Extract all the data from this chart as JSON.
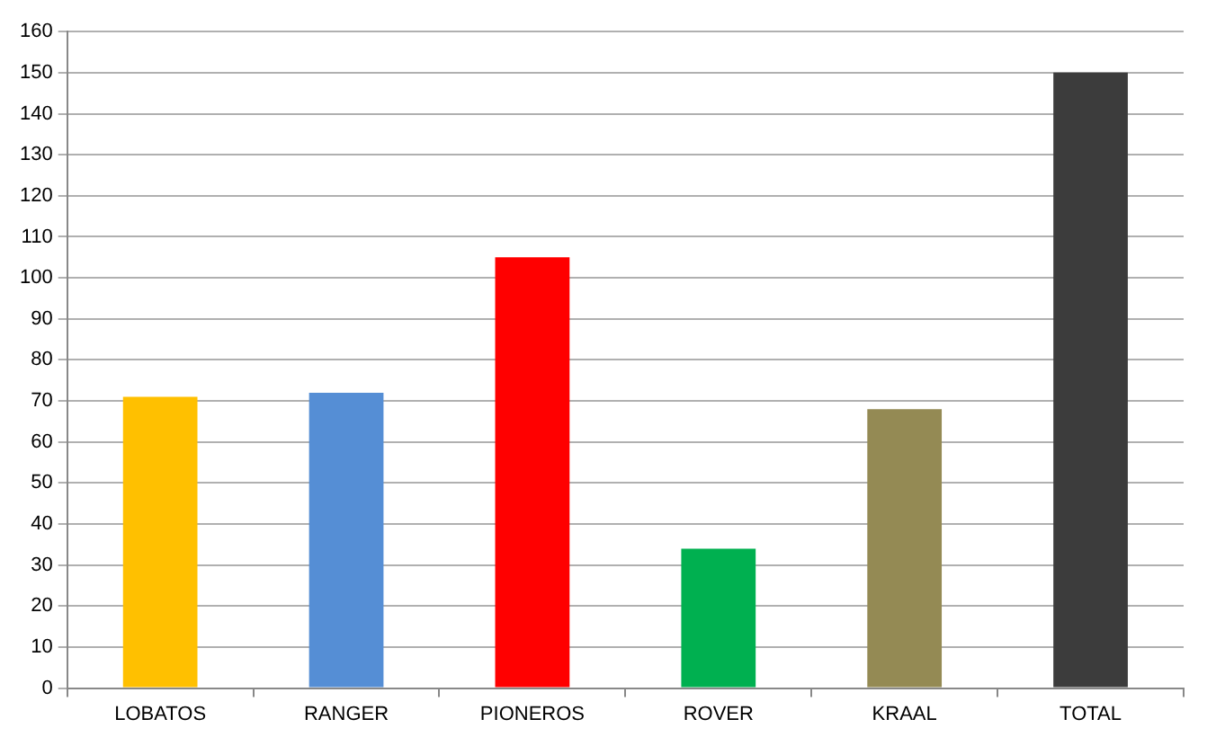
{
  "chart_data": {
    "type": "bar",
    "categories": [
      "LOBATOS",
      "RANGER",
      "PIONEROS",
      "ROVER",
      "KRAAL",
      "TOTAL"
    ],
    "values": [
      71,
      72,
      105,
      34,
      68,
      150
    ],
    "colors": [
      "#ffc000",
      "#558ed5",
      "#ff0000",
      "#00b050",
      "#948a54",
      "#3c3c3c"
    ],
    "ylim": [
      0,
      160
    ],
    "yticks": [
      0,
      10,
      20,
      30,
      40,
      50,
      60,
      70,
      80,
      90,
      100,
      110,
      120,
      130,
      140,
      150,
      160
    ],
    "grid": "y",
    "legend": false
  }
}
